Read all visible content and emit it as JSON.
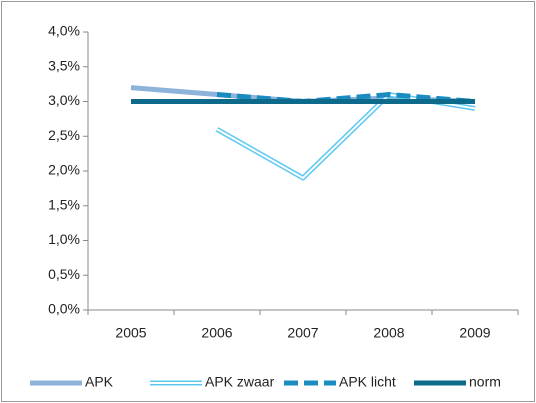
{
  "chart_data": {
    "type": "line",
    "categories": [
      "2005",
      "2006",
      "2007",
      "2008",
      "2009"
    ],
    "series": [
      {
        "name": "APK",
        "color": "#8db3da",
        "style": "solid",
        "values": [
          3.2,
          3.1,
          3.0,
          3.05,
          3.0
        ]
      },
      {
        "name": "APK zwaar",
        "color": "#5cc8f0",
        "style": "double",
        "values": [
          null,
          2.6,
          1.9,
          3.1,
          2.9
        ]
      },
      {
        "name": "APK licht",
        "color": "#1a8cc0",
        "style": "dashed",
        "values": [
          null,
          3.1,
          3.0,
          3.1,
          3.0
        ]
      },
      {
        "name": "norm",
        "color": "#0d6a8a",
        "style": "solid",
        "values": [
          3.0,
          3.0,
          3.0,
          3.0,
          3.0
        ]
      }
    ],
    "ylim": [
      0,
      4
    ],
    "yticks": [
      {
        "value": 0,
        "label": "0,0%"
      },
      {
        "value": 0.5,
        "label": "0,5%"
      },
      {
        "value": 1,
        "label": "1,0%"
      },
      {
        "value": 1.5,
        "label": "1,5%"
      },
      {
        "value": 2,
        "label": "2,0%"
      },
      {
        "value": 2.5,
        "label": "2,5%"
      },
      {
        "value": 3,
        "label": "3,0%"
      },
      {
        "value": 3.5,
        "label": "3,5%"
      },
      {
        "value": 4,
        "label": "4,0%"
      }
    ],
    "grid": false,
    "legend": "bottom"
  }
}
